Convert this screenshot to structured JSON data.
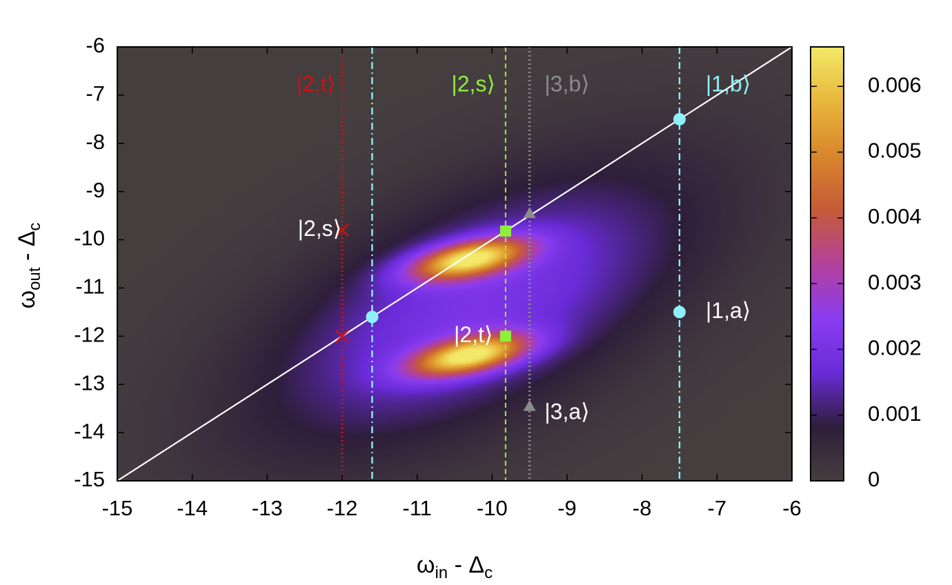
{
  "chart_data": {
    "type": "heatmap",
    "xlabel": {
      "main": "ω",
      "sub": "in",
      "rest": " - Δ",
      "sub2": "c"
    },
    "ylabel": {
      "main": "ω",
      "sub": "out",
      "rest": " - Δ",
      "sub2": "c"
    },
    "xlim": [
      -15,
      -6
    ],
    "ylim": [
      -15,
      -6
    ],
    "x_ticks": [
      "-15",
      "-14",
      "-13",
      "-12",
      "-11",
      "-10",
      "-9",
      "-8",
      "-7",
      "-6"
    ],
    "y_ticks": [
      "-6",
      "-7",
      "-8",
      "-9",
      "-10",
      "-11",
      "-12",
      "-13",
      "-14",
      "-15"
    ],
    "colorbar": {
      "min": 0,
      "max": 0.0066,
      "ticks": [
        "0",
        "0.001",
        "0.002",
        "0.003",
        "0.004",
        "0.005",
        "0.006"
      ],
      "colormap": [
        "#453e3f",
        "#2e1e3a",
        "#6a2bd8",
        "#8a3cf0",
        "#b4419a",
        "#c55b38",
        "#d9862c",
        "#e8b73c",
        "#f3e868"
      ]
    },
    "peaks": [
      {
        "x": -10.3,
        "y": -10.4,
        "amplitude": 0.0066
      },
      {
        "x": -10.3,
        "y": -12.4,
        "amplitude": 0.0066
      }
    ],
    "diagonal": {
      "from": [
        -15,
        -15
      ],
      "to": [
        -6,
        -6
      ],
      "color": "#ffffff"
    },
    "vertical_lines": [
      {
        "x": -12.0,
        "color": "#cc1111",
        "style": "dotted"
      },
      {
        "x": -11.6,
        "color": "#8ef0f8",
        "style": "dashdot"
      },
      {
        "x": -9.82,
        "color": "#a6ee3a",
        "style": "dashed"
      },
      {
        "x": -9.5,
        "color": "#8c8c8c",
        "style": "dotted"
      },
      {
        "x": -7.5,
        "color": "#8ef0f8",
        "style": "dashdot"
      }
    ],
    "markers": [
      {
        "x": -7.5,
        "y": -7.5,
        "shape": "circle",
        "color": "#8ef0f8"
      },
      {
        "x": -7.5,
        "y": -11.5,
        "shape": "circle",
        "color": "#8ef0f8"
      },
      {
        "x": -11.6,
        "y": -11.6,
        "shape": "circle",
        "color": "#8ef0f8"
      },
      {
        "x": -9.82,
        "y": -9.82,
        "shape": "square",
        "color": "#8ef03a"
      },
      {
        "x": -9.82,
        "y": -12.0,
        "shape": "square",
        "color": "#8ef03a"
      },
      {
        "x": -9.5,
        "y": -9.45,
        "shape": "triangle",
        "color": "#8c8c8c"
      },
      {
        "x": -9.5,
        "y": -13.45,
        "shape": "triangle",
        "color": "#8c8c8c"
      },
      {
        "x": -12.0,
        "y": -9.8,
        "shape": "cross",
        "color": "#cc1111"
      },
      {
        "x": -12.0,
        "y": -12.0,
        "shape": "cross",
        "color": "#cc1111"
      }
    ],
    "annotations": [
      {
        "text": "|2,t⟩",
        "x": -12.35,
        "y": -6.8,
        "color": "#cc1111"
      },
      {
        "text": "|2,s⟩",
        "x": -10.25,
        "y": -6.8,
        "color": "#8ef03a"
      },
      {
        "text": "|3,b⟩",
        "x": -9.0,
        "y": -6.8,
        "color": "#8c8c8c"
      },
      {
        "text": "|1,b⟩",
        "x": -6.85,
        "y": -6.8,
        "color": "#8ef0f8"
      },
      {
        "text": "|2,s⟩",
        "x": -12.3,
        "y": -9.8,
        "color": "#ffffff"
      },
      {
        "text": "|1,a⟩",
        "x": -6.85,
        "y": -11.5,
        "color": "#ffffff"
      },
      {
        "text": "|2,t⟩",
        "x": -10.25,
        "y": -12.0,
        "color": "#ffffff"
      },
      {
        "text": "|3,a⟩",
        "x": -9.0,
        "y": -13.6,
        "color": "#ffffff"
      }
    ]
  }
}
